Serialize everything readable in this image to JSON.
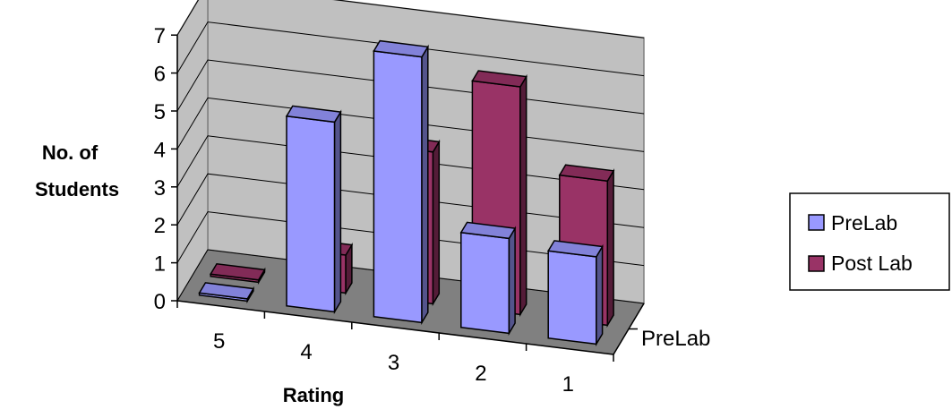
{
  "chart_data": {
    "type": "bar",
    "style": "3d-column",
    "categories": [
      "5",
      "4",
      "3",
      "2",
      "1"
    ],
    "series": [
      {
        "name": "PreLab",
        "values": [
          0,
          5,
          7,
          2.5,
          2.3
        ],
        "color": "#9999ff"
      },
      {
        "name": "Post Lab",
        "values": [
          0,
          1,
          4,
          6,
          3.8
        ],
        "color": "#993366"
      }
    ],
    "ylabel": "No. of Students",
    "xlabel": "Rating",
    "zlabel": "PreLab",
    "ylim": [
      0,
      7
    ],
    "yticks": [
      0,
      1,
      2,
      3,
      4,
      5,
      6,
      7
    ],
    "grid": true,
    "legend_position": "right"
  }
}
